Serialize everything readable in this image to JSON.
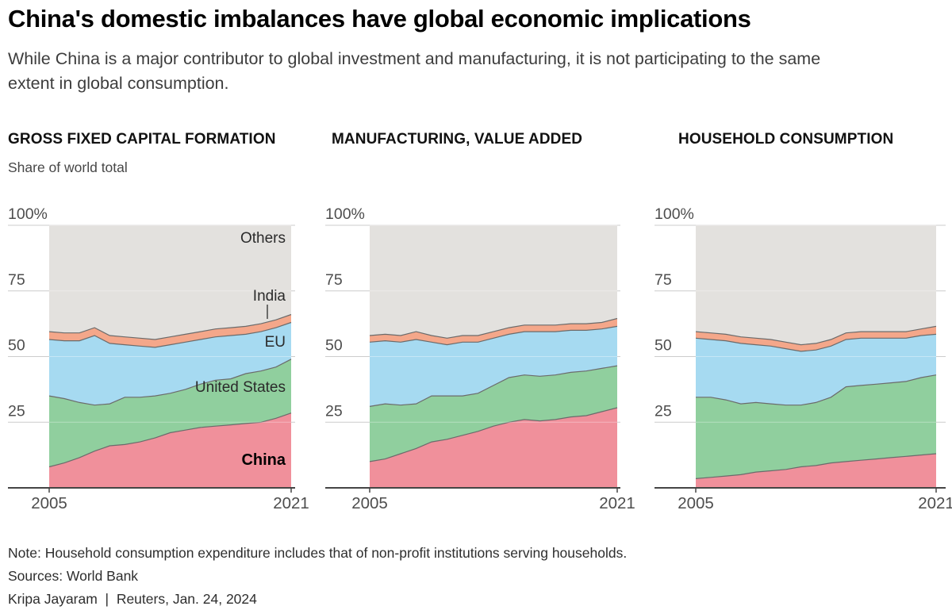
{
  "header": {
    "title": "China's domestic imbalances have global economic implications",
    "subtitle": "While China is a major contributor to global investment and manufacturing, it is not participating to the same extent in global consumption."
  },
  "y_axis_note": "Share of world total",
  "colors": {
    "china": "#f0909b",
    "united_states": "#90cf9e",
    "eu": "#a6daf1",
    "india": "#f4a78a",
    "others": "#e3e1de",
    "boundary": "#6b6b6b",
    "grid": "#cccccc",
    "axis": "#454545",
    "tick_text": "#4d4d4d",
    "annotation_text": "#2b2b2b",
    "china_label": "#000000"
  },
  "chart_data": [
    {
      "type": "area",
      "stacked": true,
      "title": "GROSS FIXED CAPITAL FORMATION",
      "x": [
        2005,
        2006,
        2007,
        2008,
        2009,
        2010,
        2011,
        2012,
        2013,
        2014,
        2015,
        2016,
        2017,
        2018,
        2019,
        2020,
        2021
      ],
      "x_label_start": "2005",
      "x_label_end": "2021",
      "ylim": [
        0,
        100
      ],
      "y_tick_labels": [
        "100%",
        "75",
        "50",
        "25"
      ],
      "y_tick_values": [
        100,
        75,
        50,
        25
      ],
      "grid": true,
      "legend_position": "labels-inside-first-chart",
      "series": [
        {
          "key": "china",
          "name": "China",
          "values": [
            8,
            9.5,
            11.5,
            14,
            16,
            16.5,
            17.5,
            19,
            21,
            22,
            23,
            23.5,
            24,
            24.5,
            25,
            26.5,
            28.5
          ]
        },
        {
          "key": "united_states",
          "name": "United States",
          "values": [
            27,
            24.5,
            21,
            17.5,
            16,
            18,
            17,
            16,
            15,
            15.5,
            16.5,
            17.5,
            17.5,
            19,
            19.5,
            19.5,
            20.5
          ]
        },
        {
          "key": "eu",
          "name": "EU",
          "values": [
            21.5,
            22,
            23.5,
            26.5,
            23,
            20,
            19.5,
            18.5,
            18.5,
            18,
            17,
            16.5,
            16.5,
            15,
            15,
            15,
            14
          ]
        },
        {
          "key": "india",
          "name": "India",
          "values": [
            3,
            3,
            3,
            3,
            3,
            3,
            3,
            3,
            3,
            3,
            3,
            3,
            3,
            3,
            3,
            3,
            3
          ]
        },
        {
          "key": "others",
          "name": "Others",
          "values": [
            40.5,
            41,
            41,
            39,
            42,
            42.5,
            43,
            43.5,
            42.5,
            41.5,
            40.5,
            39.5,
            39,
            38.5,
            37.5,
            36,
            34
          ]
        }
      ],
      "annotations": [
        "Others",
        "India",
        "EU",
        "United States",
        "China"
      ]
    },
    {
      "type": "area",
      "stacked": true,
      "title": "MANUFACTURING, VALUE ADDED",
      "x": [
        2005,
        2006,
        2007,
        2008,
        2009,
        2010,
        2011,
        2012,
        2013,
        2014,
        2015,
        2016,
        2017,
        2018,
        2019,
        2020,
        2021
      ],
      "x_label_start": "2005",
      "x_label_end": "2021",
      "ylim": [
        0,
        100
      ],
      "y_tick_labels": [
        "100%",
        "75",
        "50",
        "25"
      ],
      "y_tick_values": [
        100,
        75,
        50,
        25
      ],
      "grid": true,
      "series": [
        {
          "key": "china",
          "name": "China",
          "values": [
            10,
            11,
            13,
            15,
            17.5,
            18.5,
            20,
            21.5,
            23.5,
            25,
            26,
            25.5,
            26,
            27,
            27.5,
            29,
            30.5
          ]
        },
        {
          "key": "united_states",
          "name": "United States",
          "values": [
            21,
            21,
            18.5,
            17,
            17.5,
            16.5,
            15,
            14.5,
            15.5,
            17,
            17,
            17,
            17,
            17,
            17,
            16.5,
            16
          ]
        },
        {
          "key": "eu",
          "name": "EU",
          "values": [
            24.5,
            24,
            24,
            24.5,
            20.5,
            19.5,
            20.5,
            19.5,
            18,
            16.5,
            16.5,
            17,
            16.5,
            16,
            15.5,
            15,
            15
          ]
        },
        {
          "key": "india",
          "name": "India",
          "values": [
            2.5,
            2.5,
            2.5,
            3,
            2.5,
            2.5,
            2.5,
            2.5,
            2.5,
            2.5,
            2.5,
            2.5,
            2.5,
            2.5,
            2.5,
            2.5,
            3
          ]
        },
        {
          "key": "others",
          "name": "Others",
          "values": [
            42,
            41.5,
            42,
            40.5,
            42,
            43,
            42,
            42,
            40.5,
            39,
            38,
            38,
            38,
            37.5,
            37.5,
            37,
            35.5
          ]
        }
      ],
      "annotations": []
    },
    {
      "type": "area",
      "stacked": true,
      "title": "HOUSEHOLD CONSUMPTION",
      "x": [
        2005,
        2006,
        2007,
        2008,
        2009,
        2010,
        2011,
        2012,
        2013,
        2014,
        2015,
        2016,
        2017,
        2018,
        2019,
        2020,
        2021
      ],
      "x_label_start": "2005",
      "x_label_end": "2021",
      "ylim": [
        0,
        100
      ],
      "y_tick_labels": [
        "100%",
        "75",
        "50",
        "25"
      ],
      "y_tick_values": [
        100,
        75,
        50,
        25
      ],
      "grid": true,
      "series": [
        {
          "key": "china",
          "name": "China",
          "values": [
            3.5,
            4,
            4.5,
            5,
            6,
            6.5,
            7,
            8,
            8.5,
            9.5,
            10,
            10.5,
            11,
            11.5,
            12,
            12.5,
            13
          ]
        },
        {
          "key": "united_states",
          "name": "United States",
          "values": [
            31,
            30.5,
            29,
            27,
            26.5,
            25.5,
            24.5,
            23.5,
            24,
            25,
            28.5,
            28.5,
            28.5,
            28.5,
            28.5,
            29.5,
            30
          ]
        },
        {
          "key": "eu",
          "name": "EU",
          "values": [
            22.5,
            22,
            22.5,
            23,
            22,
            22,
            21.5,
            20.5,
            20,
            19.5,
            18,
            18,
            17.5,
            17,
            16.5,
            16,
            15.5
          ]
        },
        {
          "key": "india",
          "name": "India",
          "values": [
            2.5,
            2.5,
            2.5,
            2.5,
            2.5,
            2.5,
            2.5,
            2.5,
            2.5,
            2.5,
            2.5,
            2.5,
            2.5,
            2.5,
            2.5,
            2.5,
            3
          ]
        },
        {
          "key": "others",
          "name": "Others",
          "values": [
            40.5,
            41,
            41.5,
            42.5,
            43,
            43.5,
            44.5,
            45.5,
            45,
            43.5,
            41,
            40.5,
            40.5,
            40.5,
            40.5,
            39.5,
            38.5
          ]
        }
      ],
      "annotations": []
    }
  ],
  "footer": {
    "note": "Note: Household consumption expenditure includes that of non-profit institutions serving households.",
    "sources": "Sources: World Bank",
    "byline": "Kripa Jayaram  |  Reuters, Jan. 24, 2024"
  }
}
